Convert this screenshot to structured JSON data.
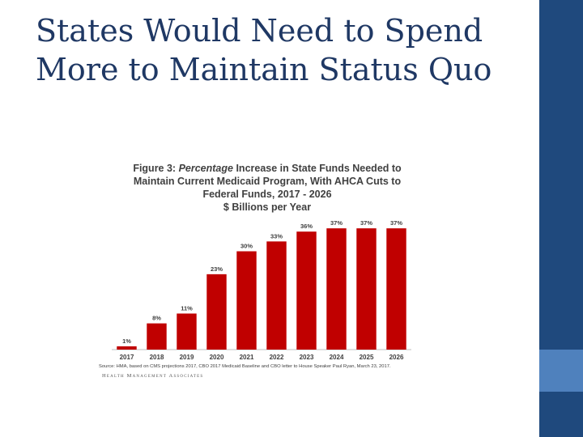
{
  "slide": {
    "title_line1": "States Would Need to Spend",
    "title_line2": "More to Maintain Status Quo"
  },
  "figure": {
    "title_prefix": "Figure 3: ",
    "title_italic": "Percentage",
    "title_rest1": " Increase in State Funds Needed to",
    "title_line2": "Maintain Current Medicaid Program, With AHCA Cuts to",
    "title_line3": "Federal Funds, 2017 - 2026",
    "title_line4": "$ Billions per Year",
    "source": "Source: HMA, based on CMS projections 2017,  CBO 2017 Medicaid Baseline and CBO letter to House Speaker Paul Ryan, March 23, 2017.",
    "logo": "Health Management Associates"
  },
  "chart_data": {
    "type": "bar",
    "categories": [
      "2017",
      "2018",
      "2019",
      "2020",
      "2021",
      "2022",
      "2023",
      "2024",
      "2025",
      "2026"
    ],
    "values": [
      1,
      8,
      11,
      23,
      30,
      33,
      36,
      37,
      37,
      37
    ],
    "data_labels": [
      "1%",
      "8%",
      "11%",
      "23%",
      "30%",
      "33%",
      "36%",
      "37%",
      "37%",
      "37%"
    ],
    "ylim": [
      0,
      40
    ],
    "bar_color": "#c00000",
    "grid": false,
    "legend": "none"
  },
  "colors": {
    "title": "#1f3864",
    "side_bar_dark": "#1f497d",
    "side_bar_light": "#4f81bd"
  }
}
